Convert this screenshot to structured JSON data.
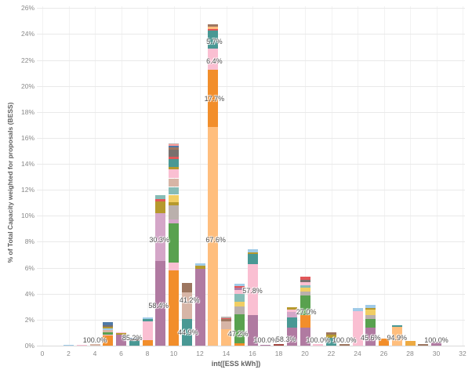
{
  "chart_data": {
    "type": "bar",
    "variant": "stacked-histogram",
    "title": "",
    "xlabel": "int([ESS kWh])",
    "ylabel": "% of Total Capacity weighted for proposals (BESS)",
    "xlim": [
      0,
      32
    ],
    "ylim": [
      0,
      26
    ],
    "grid": true,
    "legend": "none",
    "x_tick_labels": [
      "0",
      "2",
      "4",
      "6",
      "8",
      "10",
      "12",
      "14",
      "16",
      "18",
      "20",
      "22",
      "24",
      "26",
      "28",
      "30",
      "32"
    ],
    "x_tick_values": [
      0,
      2,
      4,
      6,
      8,
      10,
      12,
      14,
      16,
      18,
      20,
      22,
      24,
      26,
      28,
      30,
      32
    ],
    "y_tick_labels": [
      "0%",
      "2%",
      "4%",
      "6%",
      "8%",
      "10%",
      "12%",
      "14%",
      "16%",
      "18%",
      "20%",
      "22%",
      "24%",
      "26%"
    ],
    "y_tick_values": [
      0,
      2,
      4,
      6,
      8,
      10,
      12,
      14,
      16,
      18,
      20,
      22,
      24,
      26
    ],
    "bars": [
      {
        "x": 2,
        "segments": [
          {
            "color": "#A0CBE8",
            "value": 0.07
          }
        ]
      },
      {
        "x": 3,
        "segments": [
          {
            "color": "#FABFD2",
            "value": 0.07
          }
        ]
      },
      {
        "x": 4,
        "segments": [
          {
            "color": "#D7B5A6",
            "value": 0.1
          }
        ]
      },
      {
        "x": 5,
        "segments": [
          {
            "color": "#F28E2B",
            "value": 0.78
          },
          {
            "color": "#FABFD2",
            "value": 0.06
          },
          {
            "color": "#59A14F",
            "value": 0.16
          },
          {
            "color": "#D7B5A6",
            "value": 0.18
          },
          {
            "color": "#A0CBE8",
            "value": 0.16
          },
          {
            "color": "#B6992D",
            "value": 0.1
          },
          {
            "color": "#79706E",
            "value": 0.12
          },
          {
            "color": "#4E79A7",
            "value": 0.26
          }
        ]
      },
      {
        "x": 6,
        "segments": [
          {
            "color": "#B07AA1",
            "value": 0.85
          },
          {
            "color": "#B6992D",
            "value": 0.15
          },
          {
            "color": "#FABFD2",
            "value": 0.05
          }
        ]
      },
      {
        "x": 7,
        "segments": [
          {
            "color": "#499894",
            "value": 0.36
          },
          {
            "color": "#79706E",
            "value": 0.18
          },
          {
            "color": "#4E79A7",
            "value": 0.06
          }
        ]
      },
      {
        "x": 8,
        "segments": [
          {
            "color": "#F28E2B",
            "value": 0.45
          },
          {
            "color": "#FABFD2",
            "value": 1.42
          },
          {
            "color": "#499894",
            "value": 0.2
          },
          {
            "color": "#A0CBE8",
            "value": 0.13
          }
        ]
      },
      {
        "x": 9,
        "segments": [
          {
            "color": "#B07AA1",
            "value": 6.5
          },
          {
            "color": "#D4A6C8",
            "value": 3.7
          },
          {
            "color": "#B6992D",
            "value": 0.9
          },
          {
            "color": "#E15759",
            "value": 0.18
          },
          {
            "color": "#86BCB6",
            "value": 0.32
          }
        ]
      },
      {
        "x": 10,
        "segments": [
          {
            "color": "#F28E2B",
            "value": 5.8
          },
          {
            "color": "#FABFD2",
            "value": 0.6
          },
          {
            "color": "#59A14F",
            "value": 3.0
          },
          {
            "color": "#D4A6C8",
            "value": 0.3
          },
          {
            "color": "#BAB0AC",
            "value": 1.08
          },
          {
            "color": "#B6992D",
            "value": 0.24
          },
          {
            "color": "#F1CE63",
            "value": 0.6
          },
          {
            "color": "#86BCB6",
            "value": 0.6
          },
          {
            "color": "#D7B5A6",
            "value": 0.66
          },
          {
            "color": "#FABFD2",
            "value": 0.72
          },
          {
            "color": "#B6992D",
            "value": 0.18
          },
          {
            "color": "#499894",
            "value": 0.6
          },
          {
            "color": "#E15759",
            "value": 0.18
          },
          {
            "color": "#79706E",
            "value": 0.54
          },
          {
            "color": "#9D7660",
            "value": 0.18
          },
          {
            "color": "#4E79A7",
            "value": 0.12
          },
          {
            "color": "#FF9D9A",
            "value": 0.1
          },
          {
            "color": "#BAB0AC",
            "value": 0.1
          }
        ]
      },
      {
        "x": 11,
        "segments": [
          {
            "color": "#499894",
            "value": 2.07
          },
          {
            "color": "#D7B5A6",
            "value": 2.05
          },
          {
            "color": "#9D7660",
            "value": 0.72
          }
        ]
      },
      {
        "x": 12,
        "segments": [
          {
            "color": "#B07AA1",
            "value": 5.9
          },
          {
            "color": "#B6992D",
            "value": 0.25
          },
          {
            "color": "#A0CBE8",
            "value": 0.2
          }
        ]
      },
      {
        "x": 13,
        "segments": [
          {
            "color": "#FFBE7D",
            "value": 16.85
          },
          {
            "color": "#F28E2B",
            "value": 4.4
          },
          {
            "color": "#FABFD2",
            "value": 1.6
          },
          {
            "color": "#499894",
            "value": 1.42
          },
          {
            "color": "#E15759",
            "value": 0.13
          },
          {
            "color": "#FFBE7D",
            "value": 0.15
          },
          {
            "color": "#9D7660",
            "value": 0.22
          }
        ]
      },
      {
        "x": 14,
        "segments": [
          {
            "color": "#FFBE7D",
            "value": 1.25
          },
          {
            "color": "#D7B5A6",
            "value": 0.6
          },
          {
            "color": "#9D7660",
            "value": 0.22
          },
          {
            "color": "#E15759",
            "value": 0.05
          },
          {
            "color": "#BAB0AC",
            "value": 0.1
          }
        ]
      },
      {
        "x": 15,
        "segments": [
          {
            "color": "#F28E2B",
            "value": 0.2
          },
          {
            "color": "#59A14F",
            "value": 2.2
          },
          {
            "color": "#BAB0AC",
            "value": 0.6
          },
          {
            "color": "#F1CE63",
            "value": 0.4
          },
          {
            "color": "#86BCB6",
            "value": 0.6
          },
          {
            "color": "#FABFD2",
            "value": 0.3
          },
          {
            "color": "#B07AA1",
            "value": 0.15
          },
          {
            "color": "#E15759",
            "value": 0.15
          },
          {
            "color": "#A0CBE8",
            "value": 0.2
          }
        ]
      },
      {
        "x": 16,
        "segments": [
          {
            "color": "#B07AA1",
            "value": 2.35
          },
          {
            "color": "#FABFD2",
            "value": 3.95
          },
          {
            "color": "#499894",
            "value": 0.75
          },
          {
            "color": "#B6992D",
            "value": 0.15
          },
          {
            "color": "#A0CBE8",
            "value": 0.2
          }
        ]
      },
      {
        "x": 17,
        "segments": [
          {
            "color": "#B07AA1",
            "value": 0.08
          }
        ]
      },
      {
        "x": 18,
        "segments": [
          {
            "color": "#A1453F",
            "value": 0.15
          }
        ]
      },
      {
        "x": 19,
        "segments": [
          {
            "color": "#B07AA1",
            "value": 1.37
          },
          {
            "color": "#499894",
            "value": 0.8
          },
          {
            "color": "#D4A6C8",
            "value": 0.45
          },
          {
            "color": "#FABFD2",
            "value": 0.15
          },
          {
            "color": "#B6992D",
            "value": 0.2
          }
        ]
      },
      {
        "x": 20,
        "segments": [
          {
            "color": "#B07AA1",
            "value": 1.37
          },
          {
            "color": "#F28E2B",
            "value": 1.0
          },
          {
            "color": "#59A14F",
            "value": 1.5
          },
          {
            "color": "#BAB0AC",
            "value": 0.3
          },
          {
            "color": "#F1CE63",
            "value": 0.3
          },
          {
            "color": "#86BCB6",
            "value": 0.2
          },
          {
            "color": "#FABFD2",
            "value": 0.22
          },
          {
            "color": "#79706E",
            "value": 0.2
          },
          {
            "color": "#E15759",
            "value": 0.2
          }
        ]
      },
      {
        "x": 21,
        "segments": [
          {
            "color": "#FABFD2",
            "value": 0.1
          }
        ]
      },
      {
        "x": 22,
        "segments": [
          {
            "color": "#499894",
            "value": 0.6
          },
          {
            "color": "#B6992D",
            "value": 0.25
          },
          {
            "color": "#9D7660",
            "value": 0.15
          }
        ]
      },
      {
        "x": 23,
        "segments": [
          {
            "color": "#9D7660",
            "value": 0.1
          }
        ]
      },
      {
        "x": 24,
        "segments": [
          {
            "color": "#FABFD2",
            "value": 2.67
          },
          {
            "color": "#A0CBE8",
            "value": 0.23
          }
        ]
      },
      {
        "x": 25,
        "segments": [
          {
            "color": "#B07AA1",
            "value": 1.37
          },
          {
            "color": "#59A14F",
            "value": 0.7
          },
          {
            "color": "#BAB0AC",
            "value": 0.3
          },
          {
            "color": "#F1CE63",
            "value": 0.4
          },
          {
            "color": "#B6992D",
            "value": 0.15
          },
          {
            "color": "#A0CBE8",
            "value": 0.25
          }
        ]
      },
      {
        "x": 26,
        "segments": [
          {
            "color": "#F28E2B",
            "value": 0.56
          }
        ]
      },
      {
        "x": 27,
        "segments": [
          {
            "color": "#FFBE7D",
            "value": 1.46
          },
          {
            "color": "#499894",
            "value": 0.11
          }
        ]
      },
      {
        "x": 28,
        "segments": [
          {
            "color": "#EDAA42",
            "value": 0.36
          }
        ]
      },
      {
        "x": 29,
        "segments": [
          {
            "color": "#9D7660",
            "value": 0.12
          }
        ]
      },
      {
        "x": 30,
        "segments": [
          {
            "color": "#B07AA1",
            "value": 0.26
          }
        ]
      }
    ],
    "value_labels": [
      {
        "x": 4,
        "y": 0.42,
        "text": "100.0%"
      },
      {
        "x": 6.85,
        "y": 0.55,
        "text": "85.2%"
      },
      {
        "x": 8.85,
        "y": 3.05,
        "text": "58.4%"
      },
      {
        "x": 8.9,
        "y": 8.15,
        "text": "30.3%"
      },
      {
        "x": 11.1,
        "y": 1.0,
        "text": "44.9%"
      },
      {
        "x": 11.2,
        "y": 3.45,
        "text": "41.2%"
      },
      {
        "x": 13.2,
        "y": 8.15,
        "text": "67.6%"
      },
      {
        "x": 13.1,
        "y": 19.0,
        "text": "17.7%"
      },
      {
        "x": 13.1,
        "y": 21.9,
        "text": "6.4%"
      },
      {
        "x": 13.1,
        "y": 23.4,
        "text": "5.7%"
      },
      {
        "x": 14.9,
        "y": 0.9,
        "text": "47.2%"
      },
      {
        "x": 16.0,
        "y": 4.2,
        "text": "57.8%"
      },
      {
        "x": 17.0,
        "y": 0.42,
        "text": "100.0%"
      },
      {
        "x": 18.55,
        "y": 0.45,
        "text": "58.3%"
      },
      {
        "x": 20.1,
        "y": 2.55,
        "text": "27.0%"
      },
      {
        "x": 21.0,
        "y": 0.42,
        "text": "100.0%"
      },
      {
        "x": 23.0,
        "y": 0.42,
        "text": "100.0%"
      },
      {
        "x": 25.0,
        "y": 0.6,
        "text": "45.6%"
      },
      {
        "x": 27.0,
        "y": 0.6,
        "text": "94.9%"
      },
      {
        "x": 30.0,
        "y": 0.42,
        "text": "100.0%"
      }
    ]
  }
}
